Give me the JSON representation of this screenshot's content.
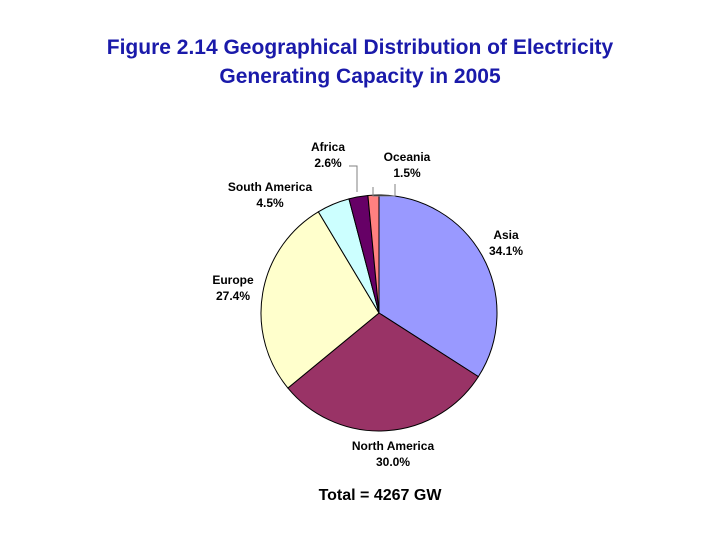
{
  "figure": {
    "title_line1": "Figure 2.14 Geographical Distribution of Electricity",
    "title_line2": "Generating Capacity in 2005"
  },
  "colors": {
    "title": "#1a1aaa",
    "slice_outline": "#000000"
  },
  "chart_data": {
    "type": "pie",
    "title": "Figure 2.14 Geographical Distribution of Electricity Generating Capacity in 2005",
    "start_angle_deg": 0,
    "direction": "clockwise",
    "slices": [
      {
        "name": "Asia",
        "value_pct": 34.1,
        "value_label": "34.1%",
        "color": "#9999ff"
      },
      {
        "name": "North America",
        "value_pct": 30.0,
        "value_label": "30.0%",
        "color": "#993366"
      },
      {
        "name": "Europe",
        "value_pct": 27.4,
        "value_label": "27.4%",
        "color": "#ffffcc"
      },
      {
        "name": "South America",
        "value_pct": 4.5,
        "value_label": "4.5%",
        "color": "#ccffff"
      },
      {
        "name": "Africa",
        "value_pct": 2.6,
        "value_label": "2.6%",
        "color": "#660066"
      },
      {
        "name": "Oceania",
        "value_pct": 1.5,
        "value_label": "1.5%",
        "color": "#ff8080"
      }
    ],
    "total_label": "Total = 4267 GW"
  }
}
